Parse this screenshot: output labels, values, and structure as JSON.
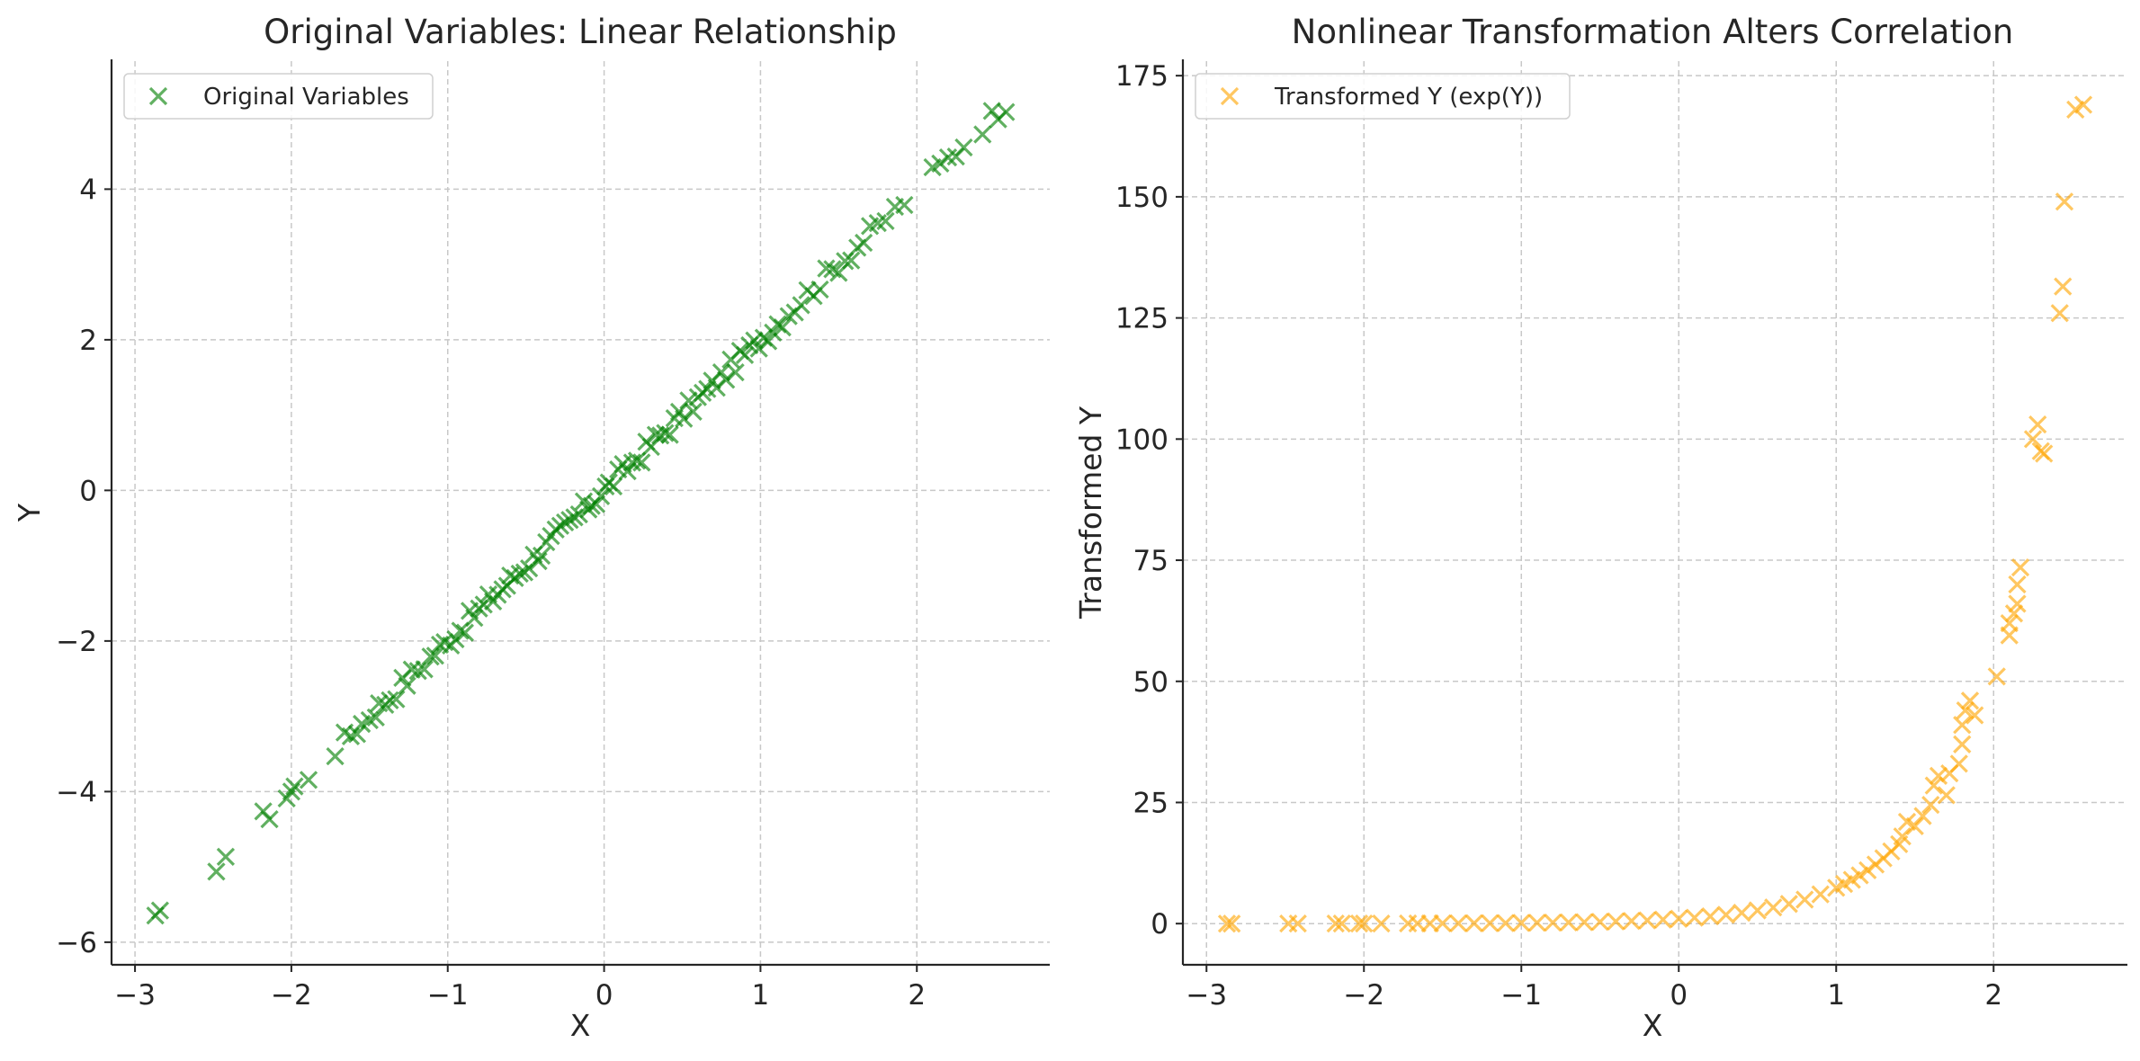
{
  "chart_data": [
    {
      "type": "scatter",
      "title": "Original Variables: Linear Relationship",
      "xlabel": "X",
      "ylabel": "Y",
      "xlim": [
        -3.15,
        2.85
      ],
      "ylim": [
        -6.3,
        5.7
      ],
      "xticks": [
        -3,
        -2,
        -1,
        0,
        1,
        2
      ],
      "yticks": [
        -6,
        -4,
        -2,
        0,
        2,
        4
      ],
      "grid": true,
      "legend_position": "top-left",
      "marker": "x",
      "series": [
        {
          "name": "Original Variables",
          "color": "#008000",
          "trend": {
            "slope": 2.0,
            "intercept": 0.0,
            "noise": 0.12
          },
          "x": [
            -2.87,
            -2.84,
            -2.48,
            -2.42,
            -2.18,
            -2.14,
            -2.03,
            -2.0,
            -1.98,
            -1.89,
            -1.72,
            -1.66,
            -1.62,
            -1.58,
            -1.55,
            -1.5,
            -1.46,
            -1.44,
            -1.4,
            -1.37,
            -1.33,
            -1.29,
            -1.26,
            -1.23,
            -1.19,
            -1.15,
            -1.11,
            -1.08,
            -1.05,
            -1.02,
            -0.98,
            -0.95,
            -0.92,
            -0.89,
            -0.86,
            -0.83,
            -0.8,
            -0.77,
            -0.74,
            -0.71,
            -0.68,
            -0.65,
            -0.62,
            -0.6,
            -0.57,
            -0.54,
            -0.51,
            -0.48,
            -0.45,
            -0.42,
            -0.4,
            -0.37,
            -0.34,
            -0.31,
            -0.28,
            -0.25,
            -0.22,
            -0.19,
            -0.16,
            -0.13,
            -0.1,
            -0.08,
            -0.05,
            -0.02,
            0.01,
            0.03,
            0.06,
            0.09,
            0.12,
            0.15,
            0.18,
            0.21,
            0.24,
            0.27,
            0.3,
            0.33,
            0.36,
            0.39,
            0.42,
            0.45,
            0.48,
            0.51,
            0.54,
            0.57,
            0.6,
            0.63,
            0.66,
            0.69,
            0.72,
            0.75,
            0.78,
            0.81,
            0.84,
            0.87,
            0.9,
            0.93,
            0.96,
            0.99,
            1.02,
            1.05,
            1.08,
            1.11,
            1.14,
            1.18,
            1.22,
            1.26,
            1.3,
            1.34,
            1.38,
            1.42,
            1.46,
            1.5,
            1.54,
            1.58,
            1.62,
            1.66,
            1.7,
            1.75,
            1.8,
            1.86,
            1.92,
            2.1,
            2.15,
            2.2,
            2.25,
            2.3,
            2.42,
            2.48,
            2.52,
            2.57
          ]
        }
      ]
    },
    {
      "type": "scatter",
      "title": "Nonlinear Transformation Alters Correlation",
      "xlabel": "X",
      "ylabel": "Transformed Y",
      "xlim": [
        -3.15,
        2.85
      ],
      "ylim": [
        -8.5,
        178
      ],
      "xticks": [
        -3,
        -2,
        -1,
        0,
        1,
        2
      ],
      "yticks": [
        0,
        25,
        50,
        75,
        100,
        125,
        150,
        175
      ],
      "grid": true,
      "legend_position": "top-left",
      "marker": "x",
      "series": [
        {
          "name": "Transformed Y (exp(Y))",
          "color": "#FFA500",
          "transform": "exp(Y)",
          "points": [
            [
              -2.87,
              0.0
            ],
            [
              -2.84,
              0.0
            ],
            [
              -2.48,
              0.01
            ],
            [
              -2.42,
              0.01
            ],
            [
              -2.18,
              0.01
            ],
            [
              -2.14,
              0.01
            ],
            [
              -2.03,
              0.02
            ],
            [
              -2.0,
              0.02
            ],
            [
              -1.89,
              0.02
            ],
            [
              -1.72,
              0.03
            ],
            [
              -1.66,
              0.04
            ],
            [
              -1.58,
              0.04
            ],
            [
              -1.5,
              0.05
            ],
            [
              -1.4,
              0.06
            ],
            [
              -1.3,
              0.07
            ],
            [
              -1.2,
              0.09
            ],
            [
              -1.1,
              0.11
            ],
            [
              -1.0,
              0.14
            ],
            [
              -0.9,
              0.17
            ],
            [
              -0.8,
              0.2
            ],
            [
              -0.7,
              0.25
            ],
            [
              -0.6,
              0.3
            ],
            [
              -0.5,
              0.37
            ],
            [
              -0.4,
              0.45
            ],
            [
              -0.3,
              0.55
            ],
            [
              -0.2,
              0.67
            ],
            [
              -0.1,
              0.82
            ],
            [
              0.0,
              1.0
            ],
            [
              0.1,
              1.22
            ],
            [
              0.2,
              1.49
            ],
            [
              0.3,
              1.82
            ],
            [
              0.4,
              2.23
            ],
            [
              0.5,
              2.72
            ],
            [
              0.6,
              3.32
            ],
            [
              0.7,
              4.06
            ],
            [
              0.8,
              4.95
            ],
            [
              0.9,
              6.05
            ],
            [
              1.0,
              7.39
            ],
            [
              1.05,
              8.17
            ],
            [
              1.1,
              9.03
            ],
            [
              1.15,
              9.97
            ],
            [
              1.2,
              11.0
            ],
            [
              1.25,
              12.2
            ],
            [
              1.3,
              13.5
            ],
            [
              1.35,
              14.9
            ],
            [
              1.4,
              16.4
            ],
            [
              1.42,
              18.0
            ],
            [
              1.45,
              21.0
            ],
            [
              1.5,
              20.1
            ],
            [
              1.55,
              22.2
            ],
            [
              1.6,
              24.5
            ],
            [
              1.62,
              28.5
            ],
            [
              1.65,
              30.5
            ],
            [
              1.7,
              26.5
            ],
            [
              1.72,
              31.0
            ],
            [
              1.78,
              33.0
            ],
            [
              1.8,
              37.0
            ],
            [
              1.8,
              41.0
            ],
            [
              1.82,
              44.0
            ],
            [
              1.85,
              46.0
            ],
            [
              1.88,
              43.0
            ],
            [
              2.02,
              51.0
            ],
            [
              2.1,
              59.5
            ],
            [
              2.1,
              62.0
            ],
            [
              2.13,
              64.0
            ],
            [
              2.15,
              66.0
            ],
            [
              2.15,
              70.0
            ],
            [
              2.17,
              73.5
            ],
            [
              2.25,
              100.0
            ],
            [
              2.28,
              103.0
            ],
            [
              2.3,
              97.5
            ],
            [
              2.32,
              97.0
            ],
            [
              2.42,
              126.0
            ],
            [
              2.44,
              131.5
            ],
            [
              2.45,
              149.0
            ],
            [
              2.52,
              168.0
            ],
            [
              2.57,
              169.0
            ]
          ]
        }
      ]
    }
  ]
}
